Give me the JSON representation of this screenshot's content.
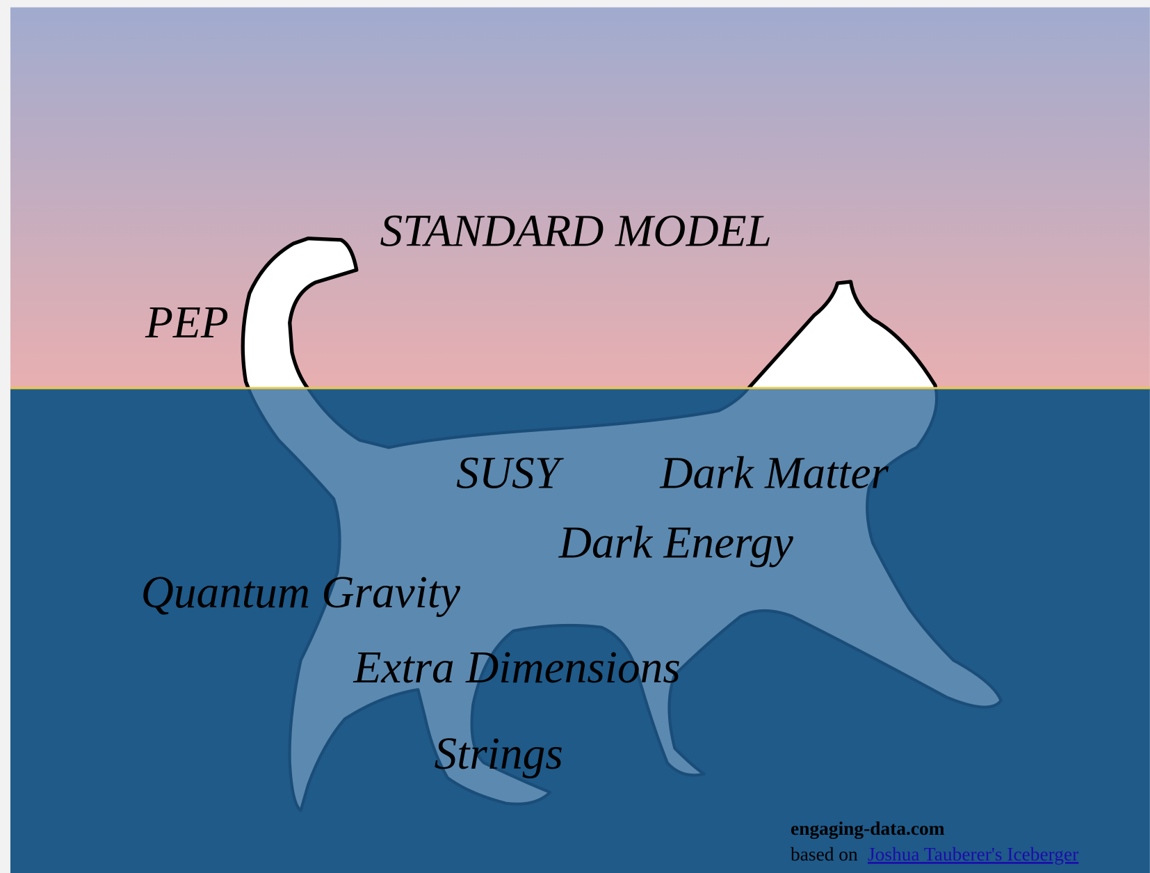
{
  "labels": [
    "STANDARD MODEL",
    "PEP",
    "SUSY",
    "Dark Matter",
    "Dark Energy",
    "Quantum Gravity",
    "Extra Dimensions",
    "Strings"
  ],
  "footer": {
    "site": "engaging-data.com",
    "based_on": "based on",
    "link": "Joshua Tauberer's Iceberger"
  }
}
